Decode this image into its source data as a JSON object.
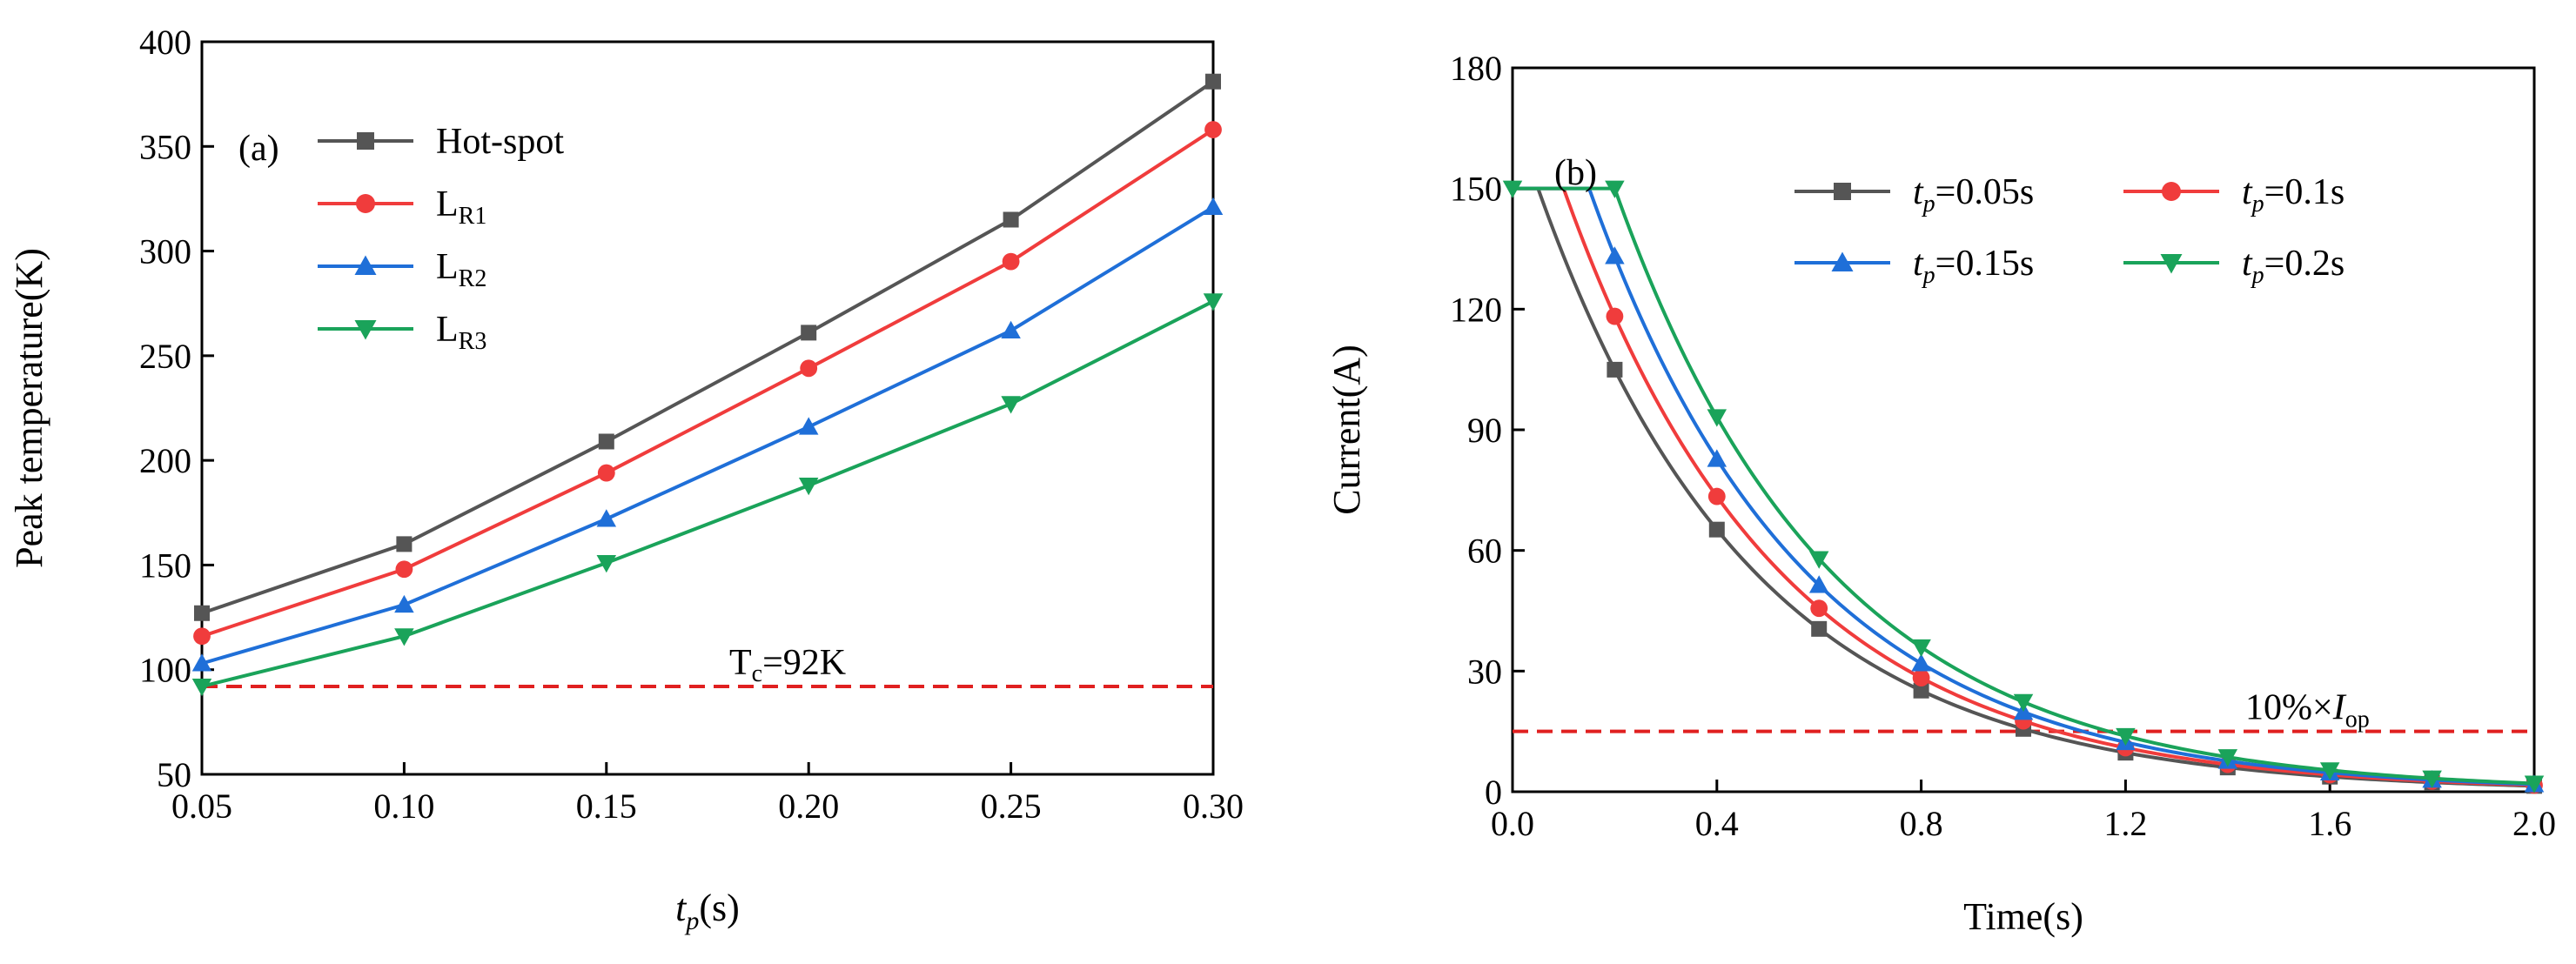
{
  "chart_data": [
    {
      "type": "line",
      "panel_label": "(a)",
      "xlabel_var": "t",
      "xlabel_sub": "p",
      "xlabel_unit": "(s)",
      "ylabel": "Peak temperature(K)",
      "xlim": [
        0.05,
        0.3
      ],
      "ylim": [
        50,
        400
      ],
      "xticks": [
        "0.05",
        "0.10",
        "0.15",
        "0.20",
        "0.25",
        "0.30"
      ],
      "yticks": [
        "50",
        "100",
        "150",
        "200",
        "250",
        "300",
        "350",
        "400"
      ],
      "grid": false,
      "legend_position": "top-left",
      "x": [
        0.05,
        0.1,
        0.15,
        0.2,
        0.25,
        0.3
      ],
      "series": [
        {
          "name": "Hot-spot",
          "name_main": "Hot-spot",
          "name_sub": "",
          "marker": "square",
          "color": "#555555",
          "values": [
            127,
            160,
            209,
            261,
            315,
            381
          ]
        },
        {
          "name": "LR1",
          "name_main": "L",
          "name_sub": "R1",
          "marker": "circle",
          "color": "#f03c3c",
          "values": [
            116,
            148,
            194,
            244,
            295,
            358
          ]
        },
        {
          "name": "LR2",
          "name_main": "L",
          "name_sub": "R2",
          "marker": "triangle-up",
          "color": "#1f6fd8",
          "values": [
            103,
            131,
            172,
            216,
            262,
            321
          ]
        },
        {
          "name": "LR3",
          "name_main": "L",
          "name_sub": "R3",
          "marker": "triangle-down",
          "color": "#1aa35a",
          "values": [
            92,
            116,
            151,
            188,
            227,
            276
          ]
        }
      ],
      "reference_line": {
        "y": 92,
        "color": "#e02020",
        "label_main": "T",
        "label_sub": "c",
        "label_rest": "=92K"
      }
    },
    {
      "type": "line",
      "panel_label": "(b)",
      "xlabel": "Time(s)",
      "ylabel": "Current(A)",
      "xlim": [
        0.0,
        2.0
      ],
      "ylim": [
        0,
        180
      ],
      "xticks": [
        "0.0",
        "0.4",
        "0.8",
        "1.2",
        "1.6",
        "2.0"
      ],
      "yticks": [
        "0",
        "30",
        "60",
        "90",
        "120",
        "150",
        "180"
      ],
      "grid": false,
      "legend_position": "top-right",
      "series": [
        {
          "name": "tp=0.05s",
          "label_var": "t",
          "label_sub": "p",
          "label_rest": "=0.05s",
          "marker": "square",
          "color": "#555555",
          "tp": 0.05
        },
        {
          "name": "tp=0.1s",
          "label_var": "t",
          "label_sub": "p",
          "label_rest": "=0.1s",
          "marker": "circle",
          "color": "#f03c3c",
          "tp": 0.1
        },
        {
          "name": "tp=0.15s",
          "label_var": "t",
          "label_sub": "p",
          "label_rest": "=0.15s",
          "marker": "triangle-up",
          "color": "#1f6fd8",
          "tp": 0.15
        },
        {
          "name": "tp=0.2s",
          "label_var": "t",
          "label_sub": "p",
          "label_rest": "=0.2s",
          "marker": "triangle-down",
          "color": "#1aa35a",
          "tp": 0.2
        }
      ],
      "initial_current": 150,
      "decay_time_constant": 0.42,
      "marker_x": [
        0.0,
        0.2,
        0.4,
        0.6,
        0.8,
        1.0,
        1.2,
        1.4,
        1.6,
        1.8,
        2.0
      ],
      "reference_line": {
        "y": 15,
        "color": "#e02020",
        "label_main": "10%×",
        "label_var": "I",
        "label_sub": "op"
      }
    }
  ]
}
